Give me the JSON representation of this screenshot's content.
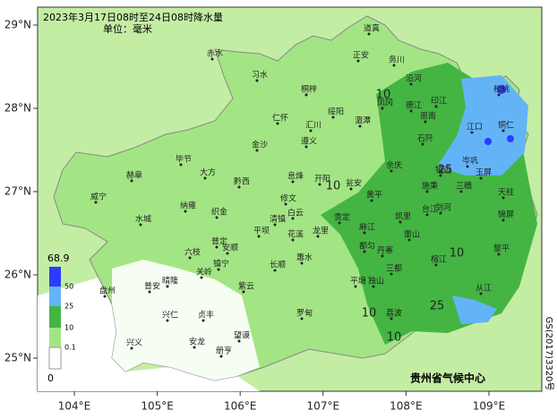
{
  "title": "2023年3月17日08时至24日08时降水量",
  "unit": "单位：毫米",
  "lat_ticks": [
    {
      "value": 29,
      "label": "29°N"
    },
    {
      "value": 28,
      "label": "28°N"
    },
    {
      "value": 27,
      "label": "27°N"
    },
    {
      "value": 26,
      "label": "26°N"
    },
    {
      "value": 25,
      "label": "25°N"
    }
  ],
  "lon_ticks": [
    {
      "value": 104,
      "label": "104°E"
    },
    {
      "value": 105,
      "label": "105°E"
    },
    {
      "value": 106,
      "label": "106°E"
    },
    {
      "value": 107,
      "label": "107°E"
    },
    {
      "value": 108,
      "label": "108°E"
    },
    {
      "value": 109,
      "label": "109°E"
    }
  ],
  "legend": {
    "max": "68.9",
    "levels": [
      "50",
      "25",
      "10",
      "0.1"
    ],
    "min": "0"
  },
  "cities": [
    "道真",
    "正安",
    "务川",
    "赤水",
    "习水",
    "桐梓",
    "沿河",
    "德江",
    "印江",
    "凤冈",
    "湄潭",
    "绥阳",
    "汇川",
    "遵义",
    "仁怀",
    "金沙",
    "松桃",
    "铜仁",
    "江口",
    "石阡",
    "思南",
    "余庆",
    "施秉",
    "毕节",
    "大方",
    "黔西",
    "赫章",
    "威宁",
    "纳雍",
    "织金",
    "水城",
    "六枝",
    "普定",
    "安顺",
    "平坝",
    "清镇",
    "修文",
    "息烽",
    "开阳",
    "白云",
    "花溪",
    "龙里",
    "贵定",
    "瓮安",
    "黄平",
    "凯里",
    "麻江",
    "丹寨",
    "雷山",
    "台江",
    "剑河",
    "三穗",
    "镇远",
    "岑巩",
    "玉屏",
    "天柱",
    "锦屏",
    "黎平",
    "榕江",
    "从江",
    "三都",
    "独山",
    "平塘",
    "荔波",
    "都匀",
    "罗甸",
    "惠水",
    "长顺",
    "紫云",
    "镇宁",
    "关岭",
    "晴隆",
    "普安",
    "盘州",
    "兴仁",
    "贞丰",
    "望谟",
    "安龙",
    "册亨",
    "兴义"
  ],
  "contour_labels": [
    "10",
    "25",
    "10",
    "10",
    "25",
    "10",
    "10"
  ],
  "credit": "贵州省气候中心",
  "approval": "GS(2017)3320号"
}
